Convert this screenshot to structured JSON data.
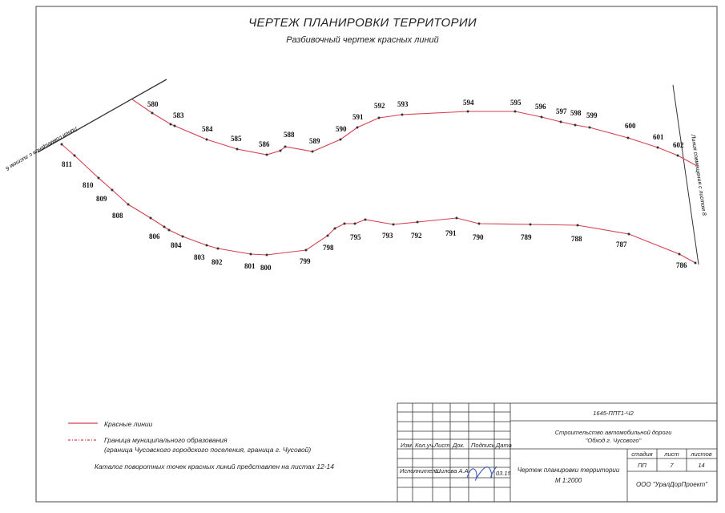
{
  "header": {
    "title": "ЧЕРТЕЖ ПЛАНИРОВКИ ТЕРРИТОРИИ",
    "subtitle": "Разбивочный чертеж красных линий"
  },
  "match_lines": {
    "left": "Линия совмещения с листом 6",
    "right": "Линия совмещения с листом 8"
  },
  "upper_line_points": [
    "580",
    "583",
    "584",
    "585",
    "586",
    "588",
    "589",
    "590",
    "591",
    "592",
    "593",
    "594",
    "595",
    "596",
    "597",
    "598",
    "599",
    "600",
    "601",
    "602"
  ],
  "lower_line_points": [
    "811",
    "810",
    "809",
    "808",
    "806",
    "804",
    "803",
    "802",
    "801",
    "800",
    "799",
    "798",
    "795",
    "793",
    "792",
    "791",
    "790",
    "789",
    "788",
    "787",
    "786"
  ],
  "legend": {
    "red_lines": "Красные линии",
    "boundary_line1": "Граница муниципального образования",
    "boundary_line2": "(граница Чусовского городского поселения, граница г. Чусовой)",
    "catalog_note": "Каталог поворотных точек красных линий представлен на листах 12-14"
  },
  "colors": {
    "red_line": "#d6404f",
    "point": "#333333",
    "frame": "#444444"
  },
  "stamp": {
    "code": "1645-ППТ1-Ч2",
    "project": "Строительство автомобильной дороги",
    "project2": "\"Обход г. Чусового\"",
    "col_headers": [
      "Изм.",
      "Кол.уч.",
      "Лист",
      "Док.",
      "Подпись",
      "Дата"
    ],
    "executor_label": "Исполнитель",
    "executor_name": "Шилова А.А.",
    "executor_date": "03.15",
    "drawing_name": "Чертеж планировки территории",
    "scale": "М 1:2000",
    "stage_label": "стадия",
    "sheet_label": "лист",
    "sheets_label": "листов",
    "stage": "ПП",
    "sheet": "7",
    "sheets": "14",
    "company": "ООО \"УралДорПроект\""
  }
}
